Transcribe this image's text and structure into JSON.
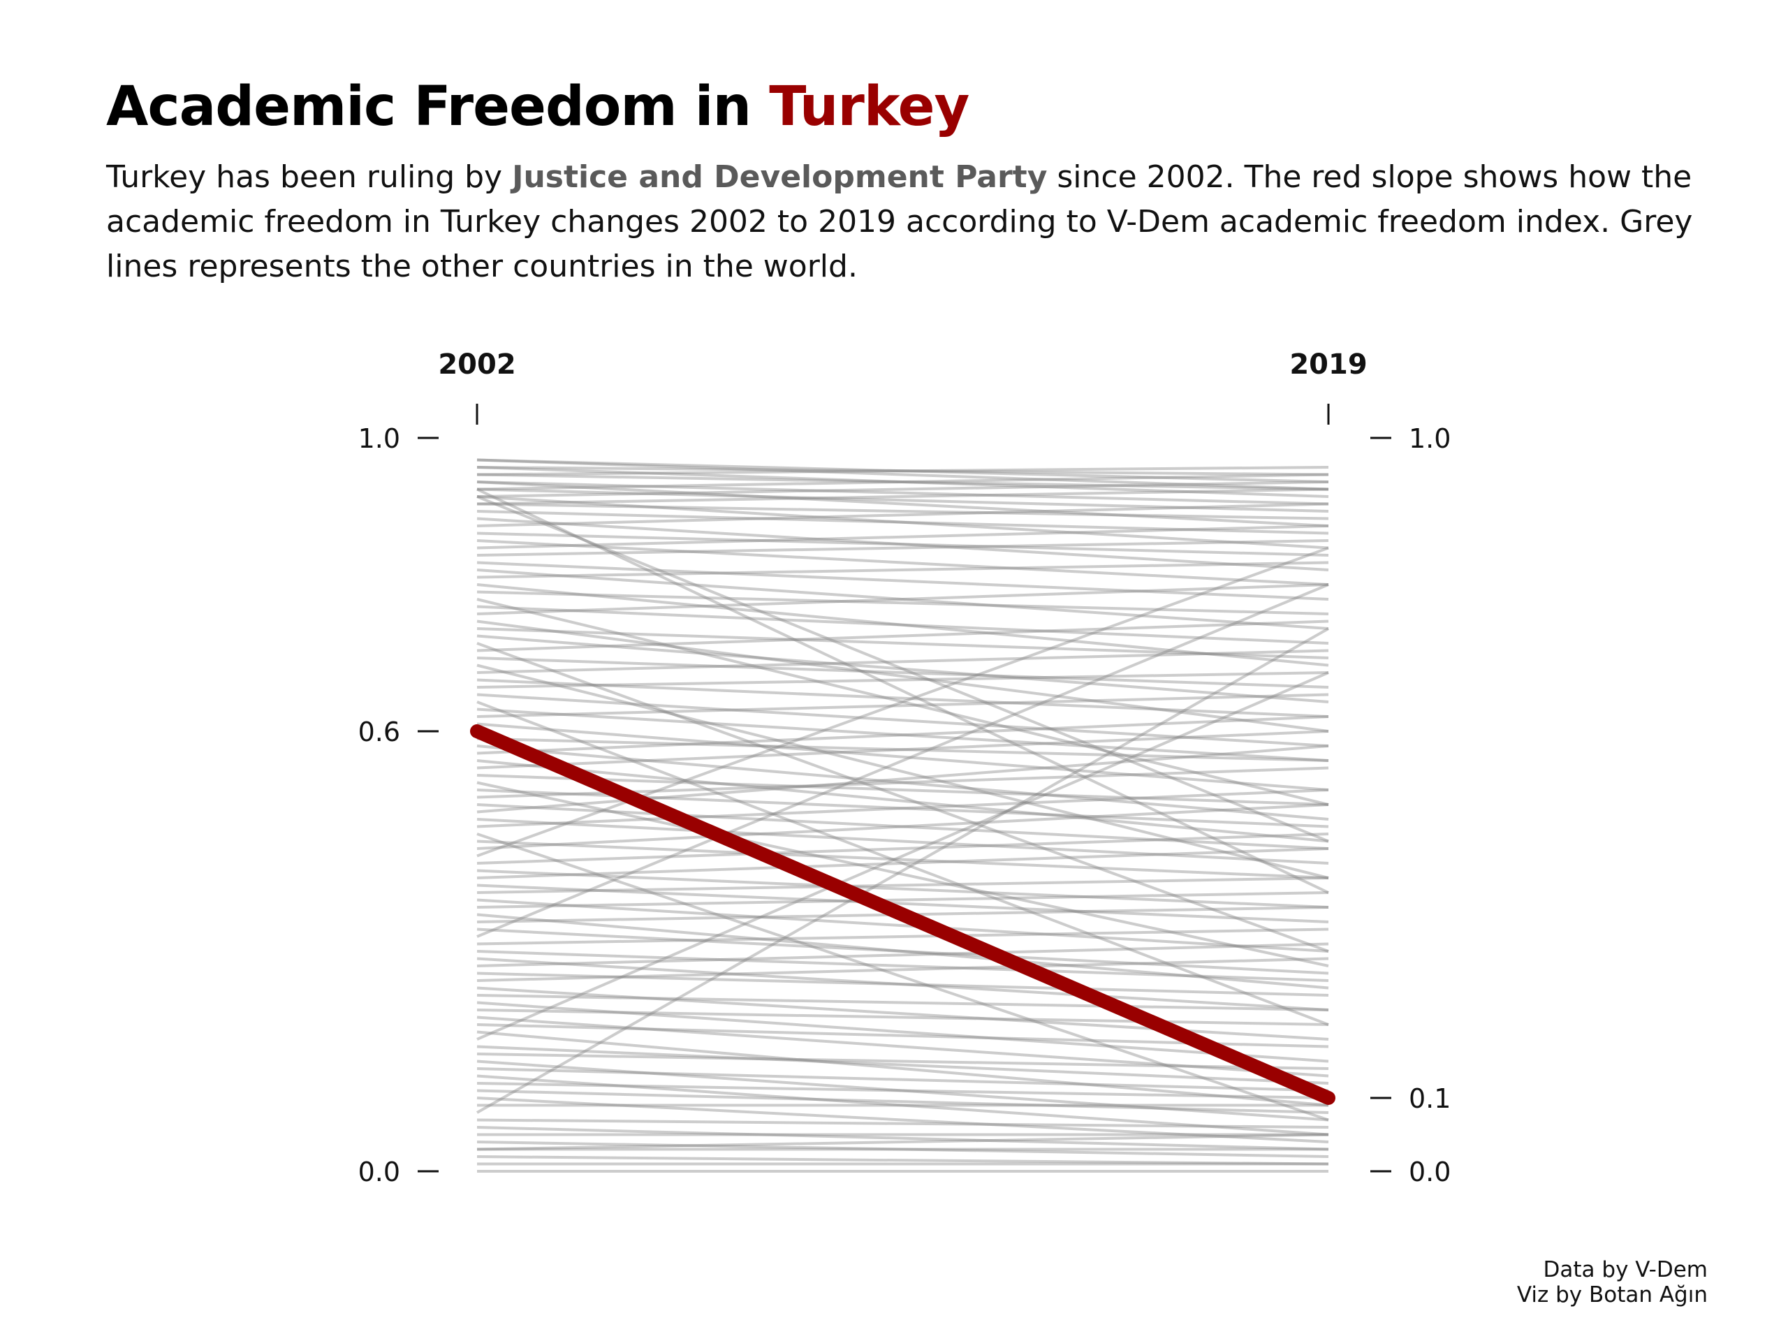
{
  "header": {
    "title_prefix": "Academic Freedom in ",
    "title_highlight": "Turkey",
    "subtitle_before": "Turkey has been ruling by ",
    "subtitle_party": "Justice and Development Party",
    "subtitle_after": " since 2002. The red slope shows how the academic freedom in Turkey changes 2002 to 2019 according to V-Dem academic freedom index. Grey lines represents the other countries in the world."
  },
  "credits": {
    "data_source": "Data by V-Dem",
    "viz_by": "Viz by Botan Ağın"
  },
  "colors": {
    "highlight": "#990000",
    "others": "#808080",
    "party": "#5a5a5a"
  },
  "chart_data": {
    "type": "line",
    "x": [
      "2002",
      "2019"
    ],
    "ylim": [
      0,
      1
    ],
    "left_axis_ticks": [
      {
        "value": 1.0,
        "label": "1.0"
      },
      {
        "value": 0.6,
        "label": "0.6"
      },
      {
        "value": 0.0,
        "label": "0.0"
      }
    ],
    "right_axis_ticks": [
      {
        "value": 1.0,
        "label": "1.0"
      },
      {
        "value": 0.1,
        "label": "0.1"
      },
      {
        "value": 0.0,
        "label": "0.0"
      }
    ],
    "highlight": {
      "name": "Turkey",
      "values": [
        0.6,
        0.1
      ]
    },
    "others": [
      [
        0.97,
        0.93
      ],
      [
        0.97,
        0.94
      ],
      [
        0.96,
        0.95
      ],
      [
        0.96,
        0.92
      ],
      [
        0.95,
        0.93
      ],
      [
        0.95,
        0.96
      ],
      [
        0.94,
        0.91
      ],
      [
        0.94,
        0.88
      ],
      [
        0.93,
        0.9
      ],
      [
        0.93,
        0.95
      ],
      [
        0.92,
        0.85
      ],
      [
        0.92,
        0.94
      ],
      [
        0.91,
        0.89
      ],
      [
        0.91,
        0.93
      ],
      [
        0.9,
        0.87
      ],
      [
        0.93,
        0.38
      ],
      [
        0.92,
        0.45
      ],
      [
        0.89,
        0.82
      ],
      [
        0.88,
        0.91
      ],
      [
        0.87,
        0.84
      ],
      [
        0.86,
        0.8
      ],
      [
        0.85,
        0.88
      ],
      [
        0.84,
        0.86
      ],
      [
        0.83,
        0.78
      ],
      [
        0.82,
        0.74
      ],
      [
        0.81,
        0.83
      ],
      [
        0.8,
        0.69
      ],
      [
        0.79,
        0.76
      ],
      [
        0.78,
        0.5
      ],
      [
        0.77,
        0.72
      ],
      [
        0.76,
        0.8
      ],
      [
        0.75,
        0.6
      ],
      [
        0.74,
        0.7
      ],
      [
        0.73,
        0.64
      ],
      [
        0.72,
        0.3
      ],
      [
        0.71,
        0.75
      ],
      [
        0.7,
        0.66
      ],
      [
        0.69,
        0.4
      ],
      [
        0.68,
        0.71
      ],
      [
        0.67,
        0.62
      ],
      [
        0.66,
        0.68
      ],
      [
        0.65,
        0.58
      ],
      [
        0.64,
        0.2
      ],
      [
        0.63,
        0.56
      ],
      [
        0.62,
        0.65
      ],
      [
        0.61,
        0.52
      ],
      [
        0.59,
        0.56
      ],
      [
        0.58,
        0.48
      ],
      [
        0.57,
        0.62
      ],
      [
        0.56,
        0.45
      ],
      [
        0.55,
        0.6
      ],
      [
        0.54,
        0.5
      ],
      [
        0.53,
        0.28
      ],
      [
        0.52,
        0.47
      ],
      [
        0.51,
        0.55
      ],
      [
        0.5,
        0.44
      ],
      [
        0.49,
        0.58
      ],
      [
        0.48,
        0.42
      ],
      [
        0.47,
        0.52
      ],
      [
        0.46,
        0.07
      ],
      [
        0.45,
        0.4
      ],
      [
        0.44,
        0.5
      ],
      [
        0.43,
        0.85
      ],
      [
        0.42,
        0.46
      ],
      [
        0.41,
        0.36
      ],
      [
        0.4,
        0.44
      ],
      [
        0.39,
        0.34
      ],
      [
        0.38,
        0.4
      ],
      [
        0.37,
        0.3
      ],
      [
        0.36,
        0.38
      ],
      [
        0.35,
        0.25
      ],
      [
        0.34,
        0.36
      ],
      [
        0.33,
        0.27
      ],
      [
        0.32,
        0.8
      ],
      [
        0.31,
        0.33
      ],
      [
        0.3,
        0.26
      ],
      [
        0.29,
        0.22
      ],
      [
        0.28,
        0.31
      ],
      [
        0.27,
        0.24
      ],
      [
        0.26,
        0.29
      ],
      [
        0.25,
        0.18
      ],
      [
        0.24,
        0.22
      ],
      [
        0.23,
        0.15
      ],
      [
        0.22,
        0.2
      ],
      [
        0.21,
        0.13
      ],
      [
        0.2,
        0.17
      ],
      [
        0.19,
        0.09
      ],
      [
        0.18,
        0.68
      ],
      [
        0.17,
        0.12
      ],
      [
        0.16,
        0.14
      ],
      [
        0.15,
        0.07
      ],
      [
        0.14,
        0.11
      ],
      [
        0.13,
        0.05
      ],
      [
        0.12,
        0.1
      ],
      [
        0.11,
        0.08
      ],
      [
        0.1,
        0.04
      ],
      [
        0.09,
        0.09
      ],
      [
        0.08,
        0.74
      ],
      [
        0.07,
        0.06
      ],
      [
        0.06,
        0.03
      ],
      [
        0.05,
        0.05
      ],
      [
        0.04,
        0.02
      ],
      [
        0.03,
        0.03
      ],
      [
        0.02,
        0.01
      ],
      [
        0.01,
        0.01
      ],
      [
        0.0,
        0.0
      ],
      [
        0.03,
        0.05
      ]
    ]
  }
}
